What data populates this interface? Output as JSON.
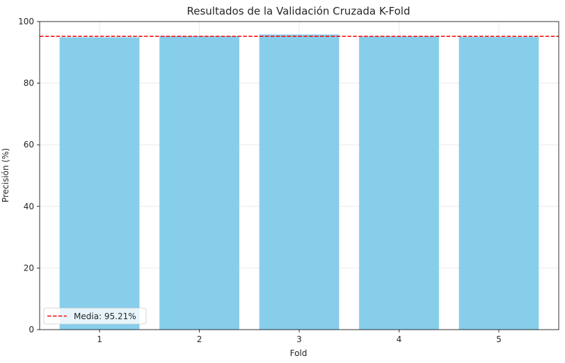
{
  "chart_data": {
    "type": "bar",
    "title": "Resultados de la Validación Cruzada K-Fold",
    "xlabel": "Fold",
    "ylabel": "Precisión (%)",
    "categories": [
      "1",
      "2",
      "3",
      "4",
      "5"
    ],
    "values": [
      94.9,
      95.3,
      95.8,
      95.2,
      95.0
    ],
    "ylim": [
      0,
      100
    ],
    "yticks": [
      "0",
      "20",
      "40",
      "60",
      "80",
      "100"
    ],
    "grid": true,
    "mean_line": {
      "value": 95.21,
      "label": "Media: 95.21%"
    },
    "legend_position": "lower-left",
    "colors": {
      "bar": "#87ceeb",
      "mean_line": "#ff0000",
      "grid": "#e6e6e6"
    }
  }
}
